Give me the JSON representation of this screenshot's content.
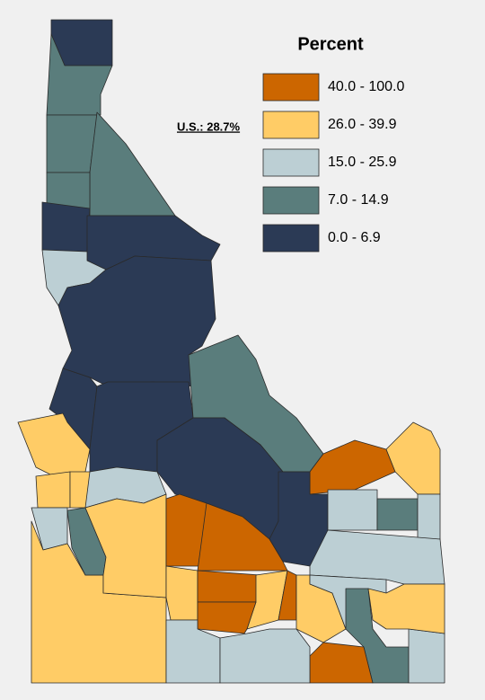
{
  "legend": {
    "title": "Percent",
    "classes": [
      {
        "label": "40.0 - 100.0",
        "color": "#cc6600"
      },
      {
        "label": "26.0 - 39.9",
        "color": "#ffcc66"
      },
      {
        "label": "15.0 - 25.9",
        "color": "#bccfd4"
      },
      {
        "label": "7.0 - 14.9",
        "color": "#5a7d7c"
      },
      {
        "label": "0.0 - 6.9",
        "color": "#2b3a55"
      }
    ]
  },
  "us_note": "U.S.: 28.7%"
}
